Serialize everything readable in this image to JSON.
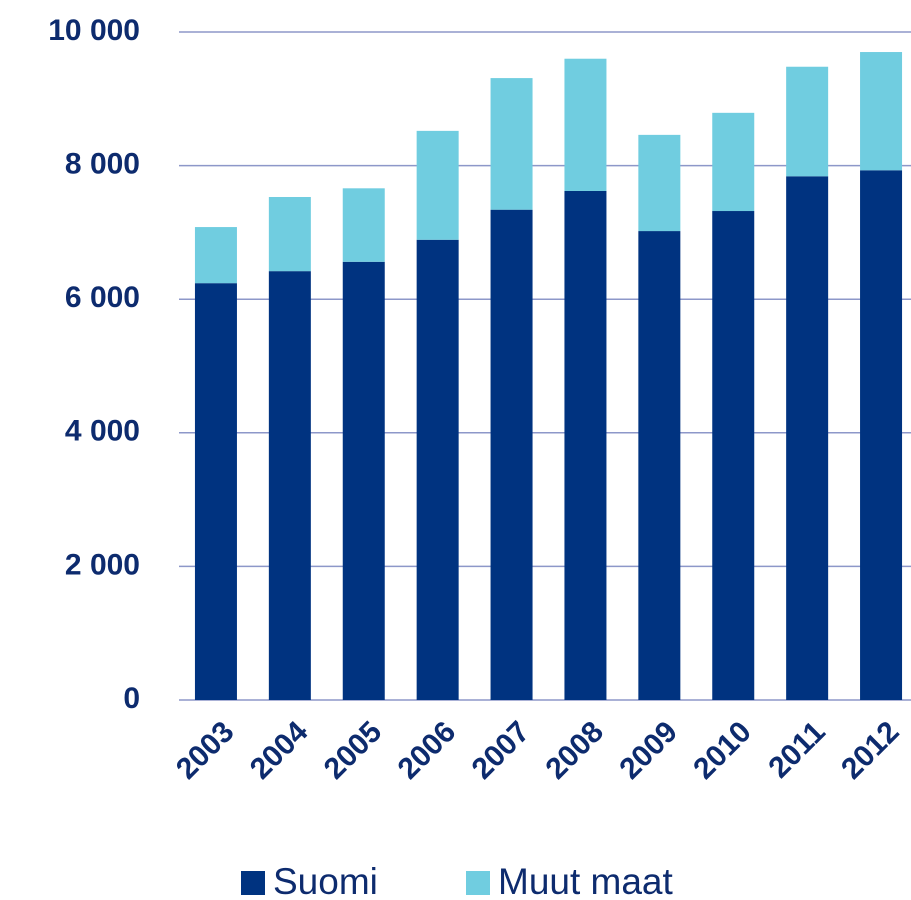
{
  "chart_data": {
    "type": "stacked_bar",
    "categories": [
      "2003",
      "2004",
      "2005",
      "2006",
      "2007",
      "2008",
      "2009",
      "2010",
      "2011",
      "2012"
    ],
    "series": [
      {
        "name": "Suomi",
        "color": "#003380",
        "values": [
          6240,
          6420,
          6560,
          6890,
          7340,
          7620,
          7020,
          7320,
          7840,
          7930
        ]
      },
      {
        "name": "Muut maat",
        "color": "#70cde0",
        "values": [
          840,
          1110,
          1100,
          1630,
          1970,
          1980,
          1440,
          1470,
          1640,
          1770
        ]
      }
    ],
    "ylim": [
      0,
      10000
    ],
    "yticks": [
      0,
      {
        "value": 2000,
        "label": "2 000"
      },
      {
        "value": 4000,
        "label": "4 000"
      },
      {
        "value": 6000,
        "label": "6 000"
      },
      {
        "value": 8000,
        "label": "8 000"
      },
      {
        "value": 10000,
        "label": "10 000"
      }
    ],
    "grid": true,
    "legend": "bottom"
  }
}
